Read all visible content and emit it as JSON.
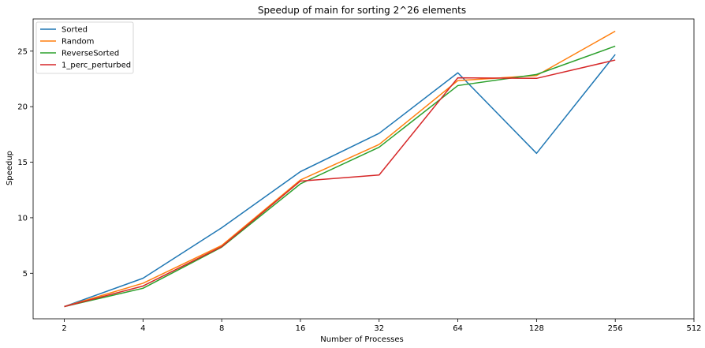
{
  "chart_data": {
    "type": "line",
    "title": "Speedup of main for sorting 2^26 elements",
    "xlabel": "Number of Processes",
    "ylabel": "Speedup",
    "x_scale": "log2",
    "xlim": [
      1.52,
      512
    ],
    "ylim": [
      0.9,
      27.9
    ],
    "xticks": [
      2,
      4,
      8,
      16,
      32,
      64,
      128,
      256,
      512
    ],
    "yticks": [
      5,
      10,
      15,
      20,
      25
    ],
    "legend_position": "top-left",
    "x": [
      2,
      4,
      8,
      16,
      32,
      64,
      128,
      256
    ],
    "series": [
      {
        "name": "Sorted",
        "color": "#1f77b4",
        "values": [
          2.0,
          4.55,
          9.1,
          14.15,
          17.6,
          23.05,
          15.8,
          24.7
        ]
      },
      {
        "name": "Random",
        "color": "#ff7f0e",
        "values": [
          2.0,
          4.1,
          7.5,
          13.4,
          16.6,
          22.35,
          22.8,
          26.8
        ]
      },
      {
        "name": "ReverseSorted",
        "color": "#2ca02c",
        "values": [
          2.0,
          3.65,
          7.35,
          13.05,
          16.35,
          21.9,
          22.9,
          25.45
        ]
      },
      {
        "name": "1_perc_perturbed",
        "color": "#d62728",
        "values": [
          2.0,
          3.85,
          7.4,
          13.3,
          13.85,
          22.6,
          22.55,
          24.2
        ]
      }
    ]
  }
}
